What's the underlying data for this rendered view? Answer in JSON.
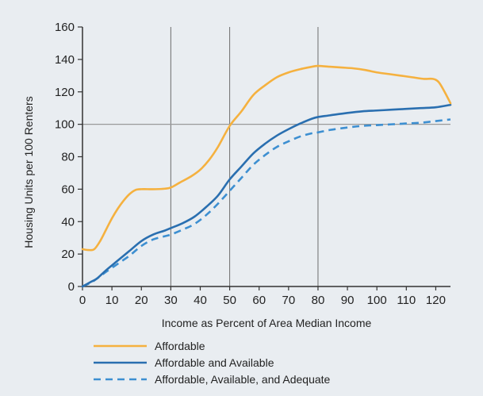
{
  "chart_data": {
    "type": "line",
    "title": "",
    "xlabel": "Income as Percent of Area Median Income",
    "ylabel": "Housing Units per 100 Renters",
    "xlim": [
      0,
      125
    ],
    "ylim": [
      0,
      160
    ],
    "x_ticks": [
      0,
      10,
      20,
      30,
      40,
      50,
      60,
      70,
      80,
      90,
      100,
      110,
      120
    ],
    "y_ticks": [
      0,
      20,
      40,
      60,
      80,
      100,
      120,
      140,
      160
    ],
    "reference_lines": {
      "vertical_x": [
        30,
        50,
        80
      ],
      "horizontal_y": [
        100
      ]
    },
    "grid": false,
    "legend_position": "bottom",
    "series": [
      {
        "name": "Affordable",
        "color": "#f5b13f",
        "dash": "solid",
        "points": [
          [
            0,
            23
          ],
          [
            2,
            22.5
          ],
          [
            4,
            23
          ],
          [
            6,
            28
          ],
          [
            8,
            35
          ],
          [
            10,
            42
          ],
          [
            12,
            48
          ],
          [
            14,
            53
          ],
          [
            16,
            57
          ],
          [
            18,
            59.5
          ],
          [
            20,
            60
          ],
          [
            22,
            60
          ],
          [
            25,
            60
          ],
          [
            28,
            60.3
          ],
          [
            30,
            61
          ],
          [
            33,
            64
          ],
          [
            37,
            68
          ],
          [
            40,
            72
          ],
          [
            43,
            78
          ],
          [
            46,
            86
          ],
          [
            50,
            99
          ],
          [
            54,
            108
          ],
          [
            58,
            118
          ],
          [
            62,
            124
          ],
          [
            66,
            129
          ],
          [
            70,
            132
          ],
          [
            74,
            134
          ],
          [
            78,
            135.5
          ],
          [
            80,
            136
          ],
          [
            84,
            135.5
          ],
          [
            88,
            135
          ],
          [
            92,
            134.5
          ],
          [
            96,
            133.5
          ],
          [
            100,
            132
          ],
          [
            104,
            131
          ],
          [
            108,
            130
          ],
          [
            112,
            129
          ],
          [
            116,
            128
          ],
          [
            119,
            128
          ],
          [
            121,
            126
          ],
          [
            123,
            120
          ],
          [
            125,
            113
          ]
        ]
      },
      {
        "name": "Affordable and Available",
        "color": "#2a6fb0",
        "dash": "solid",
        "points": [
          [
            0,
            0
          ],
          [
            3,
            3
          ],
          [
            5,
            5
          ],
          [
            8,
            10
          ],
          [
            12,
            16
          ],
          [
            16,
            22
          ],
          [
            20,
            28
          ],
          [
            24,
            32
          ],
          [
            28,
            34.5
          ],
          [
            30,
            36
          ],
          [
            34,
            39
          ],
          [
            38,
            43
          ],
          [
            42,
            49
          ],
          [
            46,
            56
          ],
          [
            50,
            66
          ],
          [
            54,
            74
          ],
          [
            58,
            82
          ],
          [
            62,
            88
          ],
          [
            66,
            93
          ],
          [
            70,
            97
          ],
          [
            74,
            100.5
          ],
          [
            78,
            103.5
          ],
          [
            80,
            104.5
          ],
          [
            84,
            105.5
          ],
          [
            90,
            107
          ],
          [
            95,
            108
          ],
          [
            100,
            108.5
          ],
          [
            105,
            109
          ],
          [
            110,
            109.5
          ],
          [
            115,
            110
          ],
          [
            120,
            110.5
          ],
          [
            125,
            112
          ]
        ]
      },
      {
        "name": "Affordable, Available, and Adequate",
        "color": "#3d8fd1",
        "dash": "dashed",
        "points": [
          [
            0,
            0
          ],
          [
            3,
            2.5
          ],
          [
            5,
            5
          ],
          [
            8,
            9
          ],
          [
            12,
            14
          ],
          [
            16,
            19
          ],
          [
            20,
            25
          ],
          [
            24,
            29
          ],
          [
            28,
            31
          ],
          [
            30,
            32
          ],
          [
            34,
            35
          ],
          [
            38,
            38.5
          ],
          [
            42,
            44
          ],
          [
            46,
            51
          ],
          [
            50,
            59
          ],
          [
            54,
            67
          ],
          [
            58,
            75
          ],
          [
            62,
            81
          ],
          [
            66,
            86
          ],
          [
            70,
            89.5
          ],
          [
            74,
            92.5
          ],
          [
            78,
            94.5
          ],
          [
            80,
            95
          ],
          [
            84,
            96.5
          ],
          [
            90,
            98
          ],
          [
            95,
            99
          ],
          [
            100,
            99.5
          ],
          [
            105,
            100
          ],
          [
            110,
            100.5
          ],
          [
            115,
            101
          ],
          [
            120,
            102
          ],
          [
            125,
            103
          ]
        ]
      }
    ]
  }
}
